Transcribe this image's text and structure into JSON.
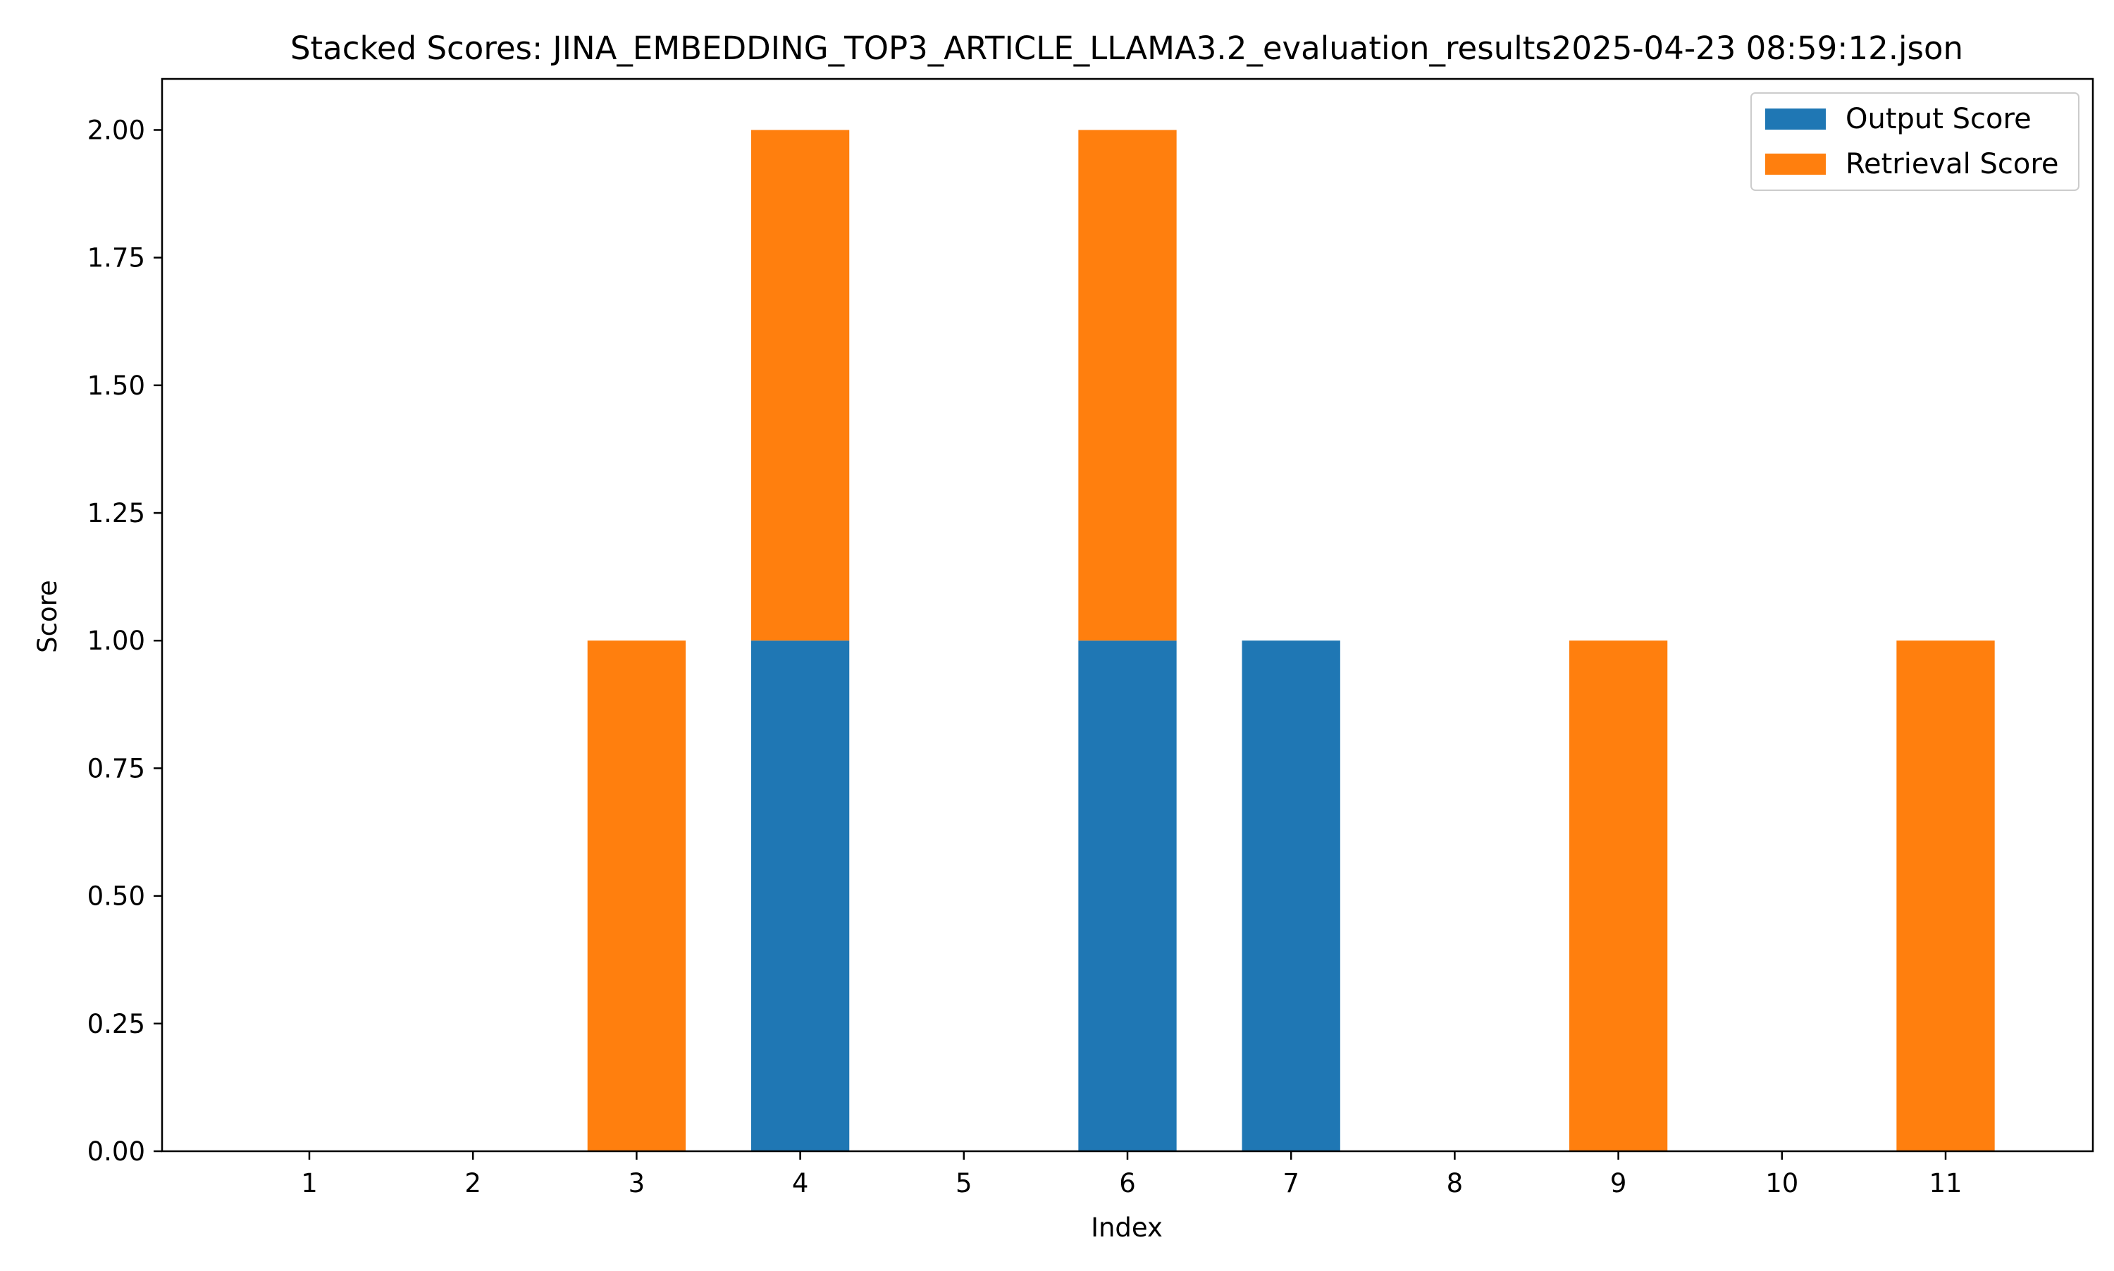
{
  "chart_data": {
    "type": "bar",
    "stacked": true,
    "title": "Stacked Scores: JINA_EMBEDDING_TOP3_ARTICLE_LLAMA3.2_evaluation_results2025-04-23 08:59:12.json",
    "xlabel": "Index",
    "ylabel": "Score",
    "categories": [
      "1",
      "2",
      "3",
      "4",
      "5",
      "6",
      "7",
      "8",
      "9",
      "10",
      "11"
    ],
    "series": [
      {
        "name": "Output Score",
        "color": "#1f77b4",
        "values": [
          0,
          0,
          0,
          1,
          0,
          1,
          1,
          0,
          0,
          0,
          0
        ]
      },
      {
        "name": "Retrieval Score",
        "color": "#ff7f0e",
        "values": [
          0,
          0,
          1,
          1,
          0,
          1,
          0,
          0,
          1,
          0,
          1
        ]
      }
    ],
    "ylim": [
      0,
      2.1
    ],
    "yticks": [
      "0.00",
      "0.25",
      "0.50",
      "0.75",
      "1.00",
      "1.25",
      "1.50",
      "1.75",
      "2.00"
    ],
    "grid": false,
    "legend_position": "top-right"
  }
}
